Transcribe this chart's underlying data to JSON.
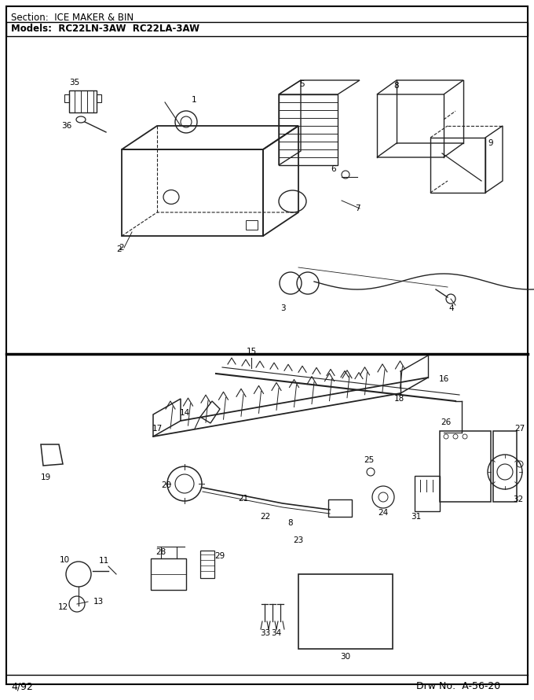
{
  "title_section": "Section:  ICE MAKER & BIN",
  "title_models": "Models:  RC22LN-3AW  RC22LA-3AW",
  "footer_left": "4/92",
  "footer_right": "Drw No:  A-56-20",
  "bg_color": "#ffffff",
  "border_color": "#000000",
  "text_color": "#000000",
  "lc": "#222222"
}
